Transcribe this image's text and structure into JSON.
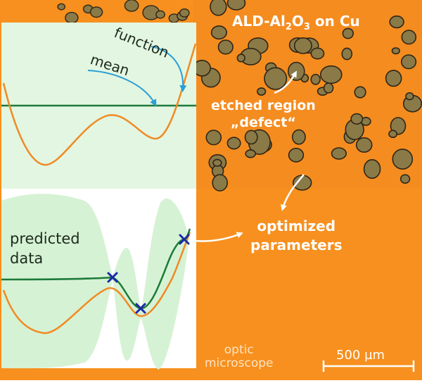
{
  "labels": {
    "title_prefix": "ALD-Al",
    "title_sub1": "2",
    "title_o": "O",
    "title_sub2": "3",
    "title_suffix": " on Cu",
    "etched_line1": "etched region",
    "etched_line2": "„defect“",
    "function": "function",
    "mean": "mean",
    "predicted_line1": "predicted",
    "predicted_line2": "data",
    "optimized_line1": "optimized",
    "optimized_line2": "parameters",
    "optic_line1": "optic",
    "optic_line2": "microscope",
    "scale_bar": "500 µm"
  },
  "colors": {
    "copper_orange": "#f7901e",
    "defect_fill": "#8a7a48",
    "defect_outline": "#2f2616",
    "panel_bg": "#e3f6e1",
    "function_curve": "#f08a24",
    "mean_curve": "#1d7a3a",
    "arrow_blue": "#2a9fd6",
    "marker_blue": "#1a2aa8"
  },
  "icons": {
    "sample_marker": "x-marker-icon",
    "pointer_arrow": "curved-arrow-icon"
  }
}
